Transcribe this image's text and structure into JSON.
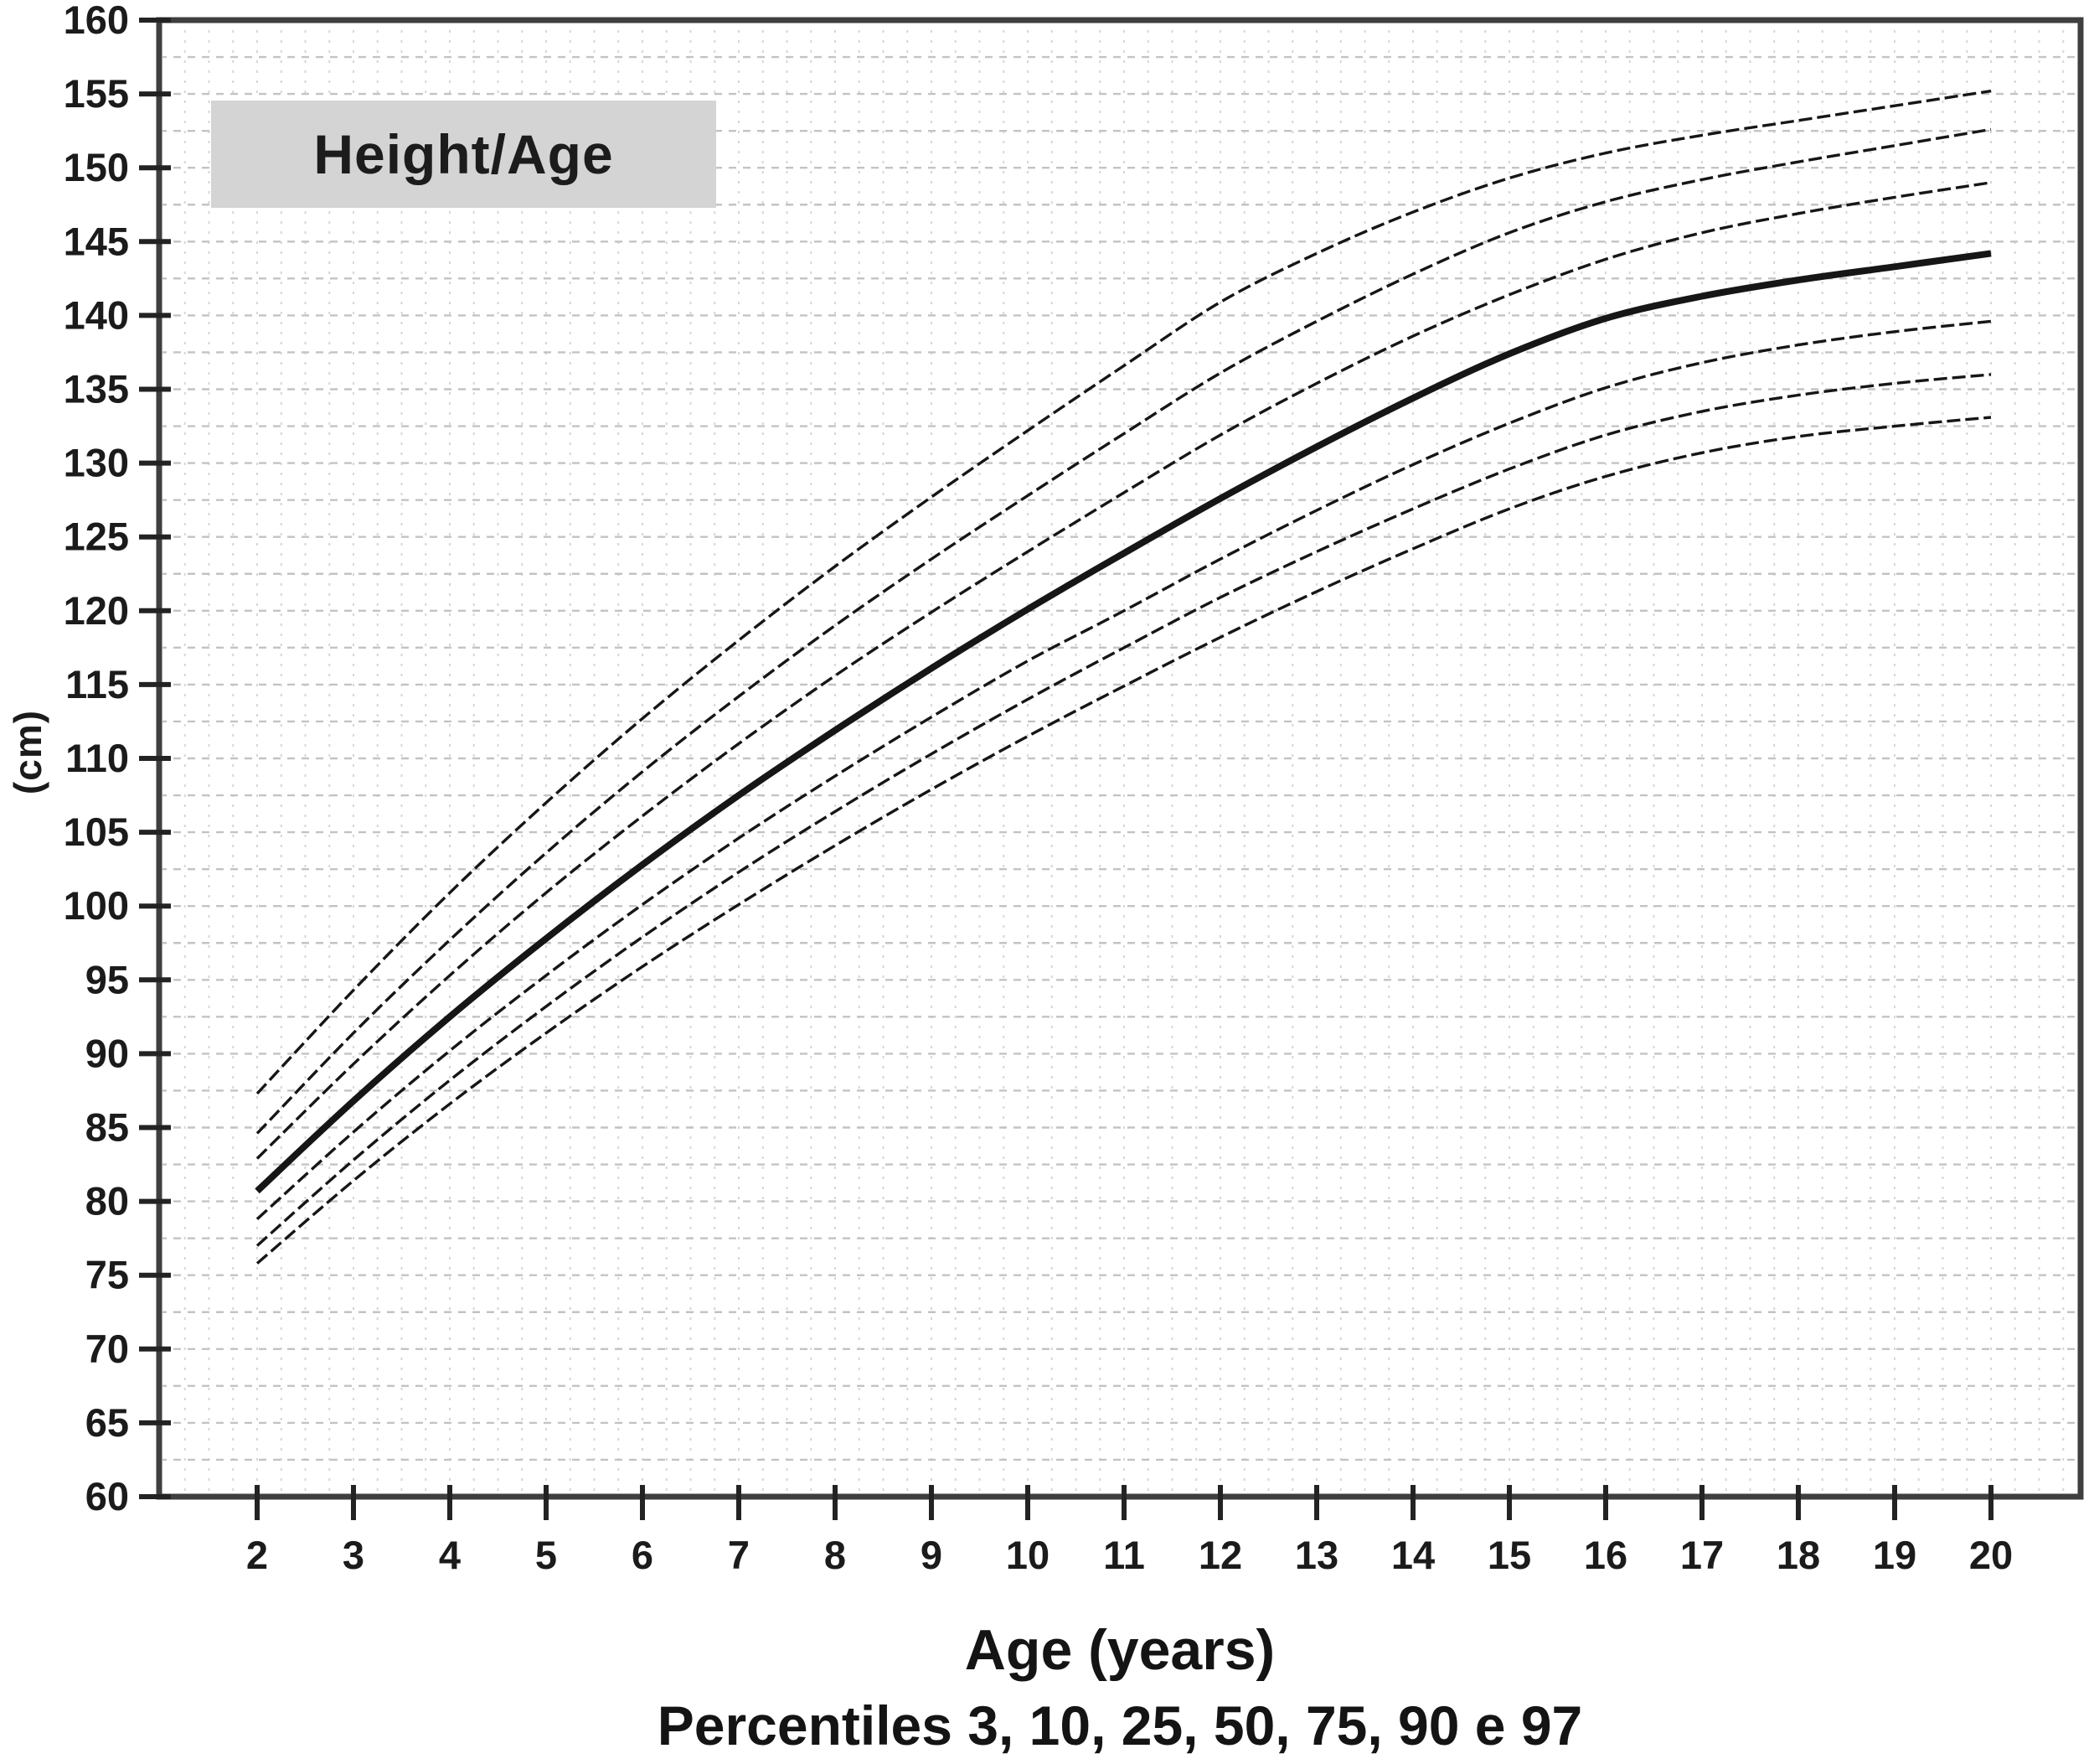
{
  "header": {
    "title": "Height/Age"
  },
  "axes": {
    "y_unit_label": "(cm)",
    "x_axis_label": "Age (years)",
    "caption": "Percentiles 3, 10, 25, 50, 75, 90 e 97"
  },
  "chart_data": {
    "type": "line",
    "title": "Height/Age",
    "xlabel": "Age (years)",
    "ylabel": "(cm)",
    "caption": "Percentiles 3, 10, 25, 50, 75, 90 e 97",
    "x": [
      2,
      3,
      4,
      5,
      6,
      7,
      8,
      9,
      10,
      11,
      12,
      13,
      14,
      15,
      16,
      17,
      18,
      19,
      20
    ],
    "xlim": [
      2,
      20
    ],
    "ylim": [
      60,
      160
    ],
    "x_tick_step": 1,
    "y_tick_step": 5,
    "grid": {
      "on": true,
      "vertical_minor_years": 0.25,
      "horizontal_minor_cm": 2.5
    },
    "legend_position": "none",
    "series": [
      {
        "name": "P3",
        "percentile": 3,
        "emphasis": false,
        "values": [
          75.8,
          81.4,
          86.6,
          91.4,
          95.9,
          100.1,
          104.1,
          107.9,
          111.5,
          114.9,
          118.2,
          121.3,
          124.2,
          126.9,
          129.1,
          130.7,
          131.8,
          132.5,
          133.1
        ]
      },
      {
        "name": "P10",
        "percentile": 10,
        "emphasis": false,
        "values": [
          77.0,
          82.8,
          88.2,
          93.2,
          97.9,
          102.3,
          106.4,
          110.3,
          114.0,
          117.5,
          120.9,
          124.0,
          126.9,
          129.6,
          131.9,
          133.5,
          134.6,
          135.4,
          136.0
        ]
      },
      {
        "name": "P25",
        "percentile": 25,
        "emphasis": false,
        "values": [
          78.8,
          84.7,
          90.2,
          95.3,
          100.1,
          104.6,
          108.8,
          112.8,
          116.6,
          120.0,
          123.5,
          126.8,
          129.9,
          132.7,
          135.1,
          136.8,
          138.0,
          138.9,
          139.6
        ]
      },
      {
        "name": "P50",
        "percentile": 50,
        "emphasis": true,
        "values": [
          80.7,
          86.8,
          92.5,
          97.8,
          102.8,
          107.5,
          111.9,
          116.1,
          120.1,
          123.9,
          127.6,
          131.1,
          134.4,
          137.4,
          139.8,
          141.3,
          142.4,
          143.3,
          144.2
        ]
      },
      {
        "name": "P75",
        "percentile": 75,
        "emphasis": false,
        "values": [
          82.9,
          89.3,
          95.3,
          100.9,
          106.1,
          111.0,
          115.6,
          119.9,
          124.0,
          128.0,
          131.9,
          135.4,
          138.6,
          141.4,
          143.8,
          145.6,
          146.9,
          148.0,
          149.0
        ]
      },
      {
        "name": "P90",
        "percentile": 90,
        "emphasis": false,
        "values": [
          84.6,
          91.4,
          97.7,
          103.6,
          109.1,
          114.2,
          119.0,
          123.5,
          127.8,
          132.0,
          136.1,
          139.6,
          142.8,
          145.6,
          147.7,
          149.2,
          150.4,
          151.5,
          152.6
        ]
      },
      {
        "name": "P97",
        "percentile": 97,
        "emphasis": false,
        "values": [
          87.3,
          94.3,
          100.9,
          107.0,
          112.7,
          118.0,
          123.0,
          127.7,
          132.2,
          136.6,
          140.9,
          144.2,
          147.0,
          149.3,
          151.0,
          152.2,
          153.2,
          154.2,
          155.2
        ]
      }
    ],
    "colors": {
      "curve": "#161616",
      "grid_horizontal": "#c3c3c3",
      "grid_vertical": "#d6d6d6",
      "axis_border": "#3f3f3f",
      "tick": "#232323",
      "tick_label": "#1b1b1b",
      "title_bg": "#d4d4d4",
      "background": "#ffffff"
    }
  }
}
